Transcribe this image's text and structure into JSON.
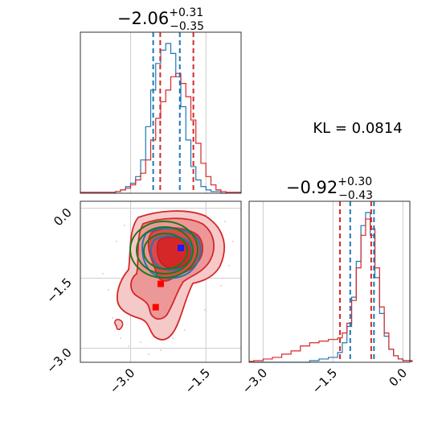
{
  "titles": {
    "x_main": "−2.06",
    "x_sup": "+0.31",
    "x_sub": "−0.35",
    "y_main": "−0.92",
    "y_sup": "+0.30",
    "y_sub": "−0.43"
  },
  "kl_label": "KL = 0.0814",
  "colors": {
    "blue": "#1f77b4",
    "red": "#d62728",
    "green": "#1a7a1a",
    "grid": "#cccccc",
    "red_fill": "#e58080"
  },
  "chart_data": [
    {
      "type": "histogram",
      "panel": "x-marginal",
      "xlim": [
        -4.0,
        -0.8
      ],
      "grid": true,
      "bins": [
        -3.3,
        -3.2,
        -3.1,
        -3.0,
        -2.9,
        -2.8,
        -2.7,
        -2.6,
        -2.5,
        -2.4,
        -2.3,
        -2.2,
        -2.1,
        -2.0,
        -1.9,
        -1.8,
        -1.7,
        -1.6,
        -1.5,
        -1.4,
        -1.3,
        -1.2
      ],
      "series": [
        {
          "color": "blue",
          "counts": [
            1,
            2,
            4,
            6,
            10,
            20,
            40,
            62,
            78,
            86,
            90,
            84,
            70,
            52,
            32,
            16,
            8,
            4,
            2,
            1,
            1,
            0
          ],
          "quantiles": [
            -2.55,
            -2.02
          ]
        },
        {
          "color": "red",
          "counts": [
            1,
            2,
            3,
            5,
            8,
            12,
            20,
            32,
            45,
            55,
            62,
            70,
            72,
            66,
            58,
            44,
            30,
            18,
            10,
            5,
            2,
            1
          ],
          "quantiles": [
            -2.41,
            -1.75
          ]
        }
      ]
    },
    {
      "type": "histogram",
      "panel": "y-marginal",
      "xlim": [
        -3.3,
        0.15
      ],
      "xticks": [
        "−3.0",
        "−1.5",
        "0.0"
      ],
      "grid": true,
      "bins": [
        -3.2,
        -3.0,
        -2.8,
        -2.6,
        -2.4,
        -2.2,
        -2.0,
        -1.8,
        -1.6,
        -1.4,
        -1.3,
        -1.2,
        -1.1,
        -1.0,
        -0.9,
        -0.8,
        -0.7,
        -0.6,
        -0.5,
        -0.4,
        -0.3,
        -0.2,
        -0.1,
        0.0
      ],
      "series": [
        {
          "color": "blue",
          "counts": [
            0,
            0,
            0,
            0,
            0,
            0,
            1,
            2,
            3,
            6,
            12,
            22,
            40,
            62,
            84,
            92,
            78,
            52,
            30,
            16,
            8,
            4,
            2,
            1
          ],
          "quantiles": [
            -1.13,
            -0.62
          ]
        },
        {
          "color": "red",
          "counts": [
            1,
            2,
            3,
            5,
            7,
            10,
            12,
            13,
            14,
            15,
            18,
            24,
            38,
            58,
            78,
            88,
            82,
            58,
            34,
            18,
            8,
            4,
            2,
            1
          ],
          "quantiles": [
            -1.35,
            -0.68
          ]
        }
      ]
    },
    {
      "type": "contour",
      "panel": "joint",
      "xlim": [
        -4.0,
        -0.8
      ],
      "ylim": [
        -3.3,
        0.15
      ],
      "xticks": [
        "−3.0",
        "−1.5"
      ],
      "yticks": [
        "0.0",
        "−1.5",
        "−3.0"
      ],
      "grid": true,
      "markers": [
        {
          "color": "blue",
          "x": -2.0,
          "y": -0.85
        },
        {
          "color": "red",
          "x": -2.4,
          "y": -1.62
        },
        {
          "color": "red",
          "x": -2.5,
          "y": -2.12
        }
      ]
    }
  ]
}
